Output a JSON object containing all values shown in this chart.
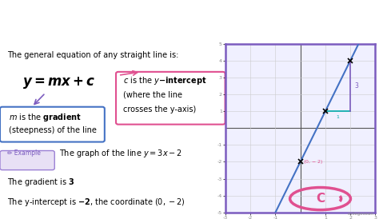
{
  "title_text": "$y = mx + c$",
  "title_bg": "#7C5CBF",
  "title_text_color": "white",
  "bg_color": "white",
  "general_eq_text": "The general equation of any straight line is:",
  "graph_border_color": "#7C5CBF",
  "graph_bg": "#f0f0ff",
  "line_color": "#4472C4",
  "axis_color": "#555555",
  "grid_color": "#cccccc",
  "tick_color": "#888888",
  "run_color": "#00AAAA",
  "rise_color": "#7C5CBF",
  "intercept_label_color": "#E05090",
  "xlim": [
    -3,
    3
  ],
  "ylim": [
    -5,
    5
  ],
  "slope": 3,
  "intercept": -2,
  "m_box_edge": "#4472C4",
  "c_box_edge": "#E05090",
  "example_pill_bg": "#E8E0F5",
  "example_pill_edge": "#9B7FD4",
  "example_pill_text": "#7C5CBF",
  "gradient_num_color": "#E05090",
  "intercept_num_color": "#E05090",
  "logo_color": "#E05090",
  "logo_text_color": "#888888"
}
